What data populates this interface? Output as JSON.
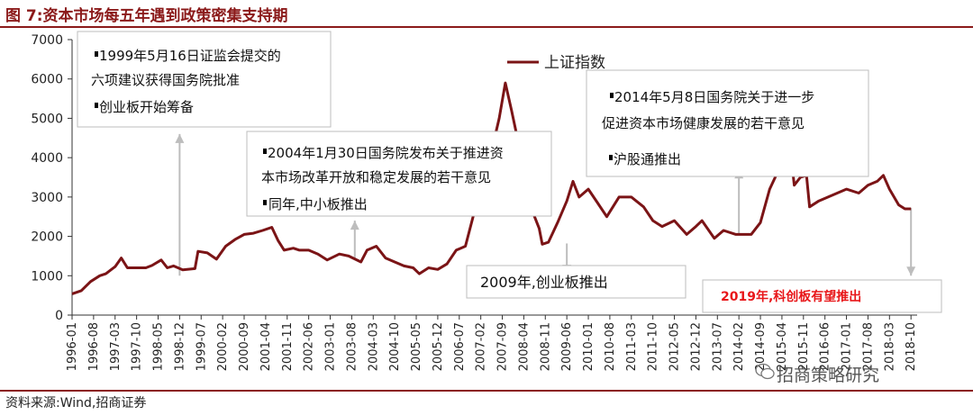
{
  "header": {
    "title": "图 7:资本市场每五年遇到政策密集支持期"
  },
  "source": "资料来源:Wind,招商证券",
  "watermark": "招商策略研究",
  "colors": {
    "line": "#7B1416",
    "accent": "#8B1A1A",
    "highlight": "#E8171A",
    "arrow": "#BDBDBD"
  },
  "annotations": [
    {
      "id": "a1999",
      "lines": [
        "1999年5月16日证监会提交的",
        "六项建议获得国务院批准",
        "创业板开始筹备"
      ],
      "bullets": [
        true,
        false,
        true
      ]
    },
    {
      "id": "a2004",
      "lines": [
        "2004年1月30日国务院发布关于推进资",
        "本市场改革开放和稳定发展的若干意见",
        "同年,中小板推出"
      ],
      "bullets": [
        true,
        false,
        true
      ]
    },
    {
      "id": "a2009",
      "lines": [
        "2009年,创业板推出"
      ],
      "bullets": [
        false
      ]
    },
    {
      "id": "a2014",
      "lines": [
        "2014年5月8日国务院关于进一步",
        "促进资本市场健康发展的若干意见",
        "沪股通推出"
      ],
      "bullets": [
        true,
        false,
        true
      ]
    },
    {
      "id": "a2019",
      "lines": [
        "2019年,科创板有望推出"
      ],
      "bullets": [
        false
      ]
    }
  ],
  "chart_data": {
    "type": "line",
    "title": "",
    "xlabel": "",
    "ylabel": "",
    "ylim": [
      0,
      7000
    ],
    "yticks": [
      0,
      1000,
      2000,
      3000,
      4000,
      5000,
      6000,
      7000
    ],
    "xticks": [
      "1996-01",
      "1996-08",
      "1997-03",
      "1997-10",
      "1998-05",
      "1998-12",
      "1999-07",
      "2000-02",
      "2000-09",
      "2001-04",
      "2001-11",
      "2002-06",
      "2003-01",
      "2003-08",
      "2004-03",
      "2004-10",
      "2005-05",
      "2005-12",
      "2006-07",
      "2007-02",
      "2007-09",
      "2008-04",
      "2008-11",
      "2009-06",
      "2010-01",
      "2010-08",
      "2011-03",
      "2011-10",
      "2012-05",
      "2012-12",
      "2013-07",
      "2014-02",
      "2014-09",
      "2015-04",
      "2015-11",
      "2016-06",
      "2017-01",
      "2017-08",
      "2018-03",
      "2018-10"
    ],
    "legend": {
      "position": "top-center"
    },
    "series": [
      {
        "name": "上证指数",
        "x": [
          "1996-01",
          "1996-04",
          "1996-07",
          "1996-10",
          "1996-12",
          "1997-03",
          "1997-05",
          "1997-07",
          "1997-10",
          "1998-01",
          "1998-03",
          "1998-06",
          "1998-08",
          "1998-10",
          "1999-01",
          "1999-05",
          "1999-06",
          "1999-09",
          "1999-12",
          "2000-03",
          "2000-06",
          "2000-09",
          "2000-12",
          "2001-03",
          "2001-06",
          "2001-08",
          "2001-10",
          "2002-01",
          "2002-03",
          "2002-06",
          "2002-09",
          "2002-12",
          "2003-04",
          "2003-07",
          "2003-11",
          "2004-01",
          "2004-04",
          "2004-07",
          "2004-10",
          "2005-01",
          "2005-04",
          "2005-06",
          "2005-09",
          "2005-12",
          "2006-03",
          "2006-06",
          "2006-09",
          "2006-12",
          "2007-02",
          "2007-05",
          "2007-08",
          "2007-10",
          "2007-12",
          "2008-03",
          "2008-06",
          "2008-09",
          "2008-10",
          "2008-12",
          "2009-03",
          "2009-06",
          "2009-08",
          "2009-10",
          "2010-01",
          "2010-04",
          "2010-07",
          "2010-11",
          "2011-03",
          "2011-07",
          "2011-10",
          "2012-01",
          "2012-05",
          "2012-09",
          "2012-12",
          "2013-02",
          "2013-06",
          "2013-09",
          "2014-01",
          "2014-06",
          "2014-09",
          "2014-12",
          "2015-03",
          "2015-06",
          "2015-07",
          "2015-08",
          "2015-10",
          "2015-12",
          "2016-01",
          "2016-04",
          "2016-07",
          "2016-10",
          "2017-01",
          "2017-05",
          "2017-08",
          "2017-11",
          "2018-01",
          "2018-03",
          "2018-06",
          "2018-08",
          "2018-10"
        ],
        "values": [
          540,
          620,
          850,
          1000,
          1050,
          1230,
          1450,
          1200,
          1200,
          1200,
          1260,
          1400,
          1200,
          1250,
          1150,
          1180,
          1620,
          1580,
          1420,
          1750,
          1920,
          2050,
          2080,
          2150,
          2230,
          1900,
          1650,
          1700,
          1650,
          1650,
          1550,
          1400,
          1550,
          1500,
          1350,
          1650,
          1750,
          1450,
          1350,
          1250,
          1200,
          1050,
          1200,
          1160,
          1300,
          1650,
          1750,
          2650,
          2800,
          4000,
          5000,
          5900,
          5200,
          4100,
          2800,
          2200,
          1800,
          1850,
          2350,
          2900,
          3400,
          3000,
          3200,
          2850,
          2500,
          3000,
          3000,
          2750,
          2400,
          2250,
          2400,
          2050,
          2250,
          2400,
          1950,
          2150,
          2050,
          2050,
          2350,
          3200,
          3700,
          5100,
          4000,
          3300,
          3500,
          3550,
          2750,
          2900,
          3000,
          3100,
          3200,
          3100,
          3300,
          3400,
          3550,
          3200,
          2800,
          2700,
          2700
        ]
      }
    ],
    "annotation_arrows": [
      {
        "at": "1998-12",
        "from": 1000,
        "to": 4600
      },
      {
        "at": "2003-09",
        "from": 1450,
        "to": 2400
      },
      {
        "at": "2009-06",
        "from": 1820,
        "to": 1050
      },
      {
        "at": "2014-02",
        "from": 2050,
        "to": 3700
      },
      {
        "at": "2018-10",
        "from": 2720,
        "to": 1000
      }
    ]
  }
}
